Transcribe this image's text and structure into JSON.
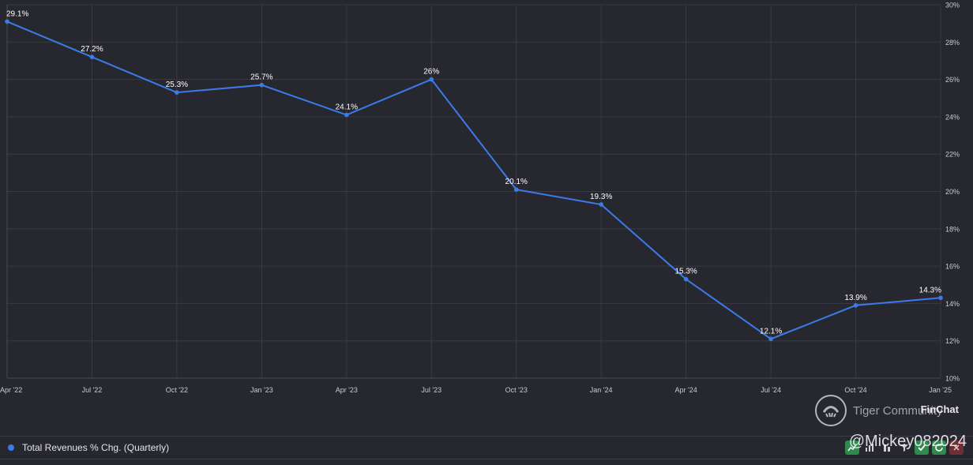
{
  "colors": {
    "background": "#27272f",
    "grid": "#3a3a44",
    "series": "#3b7be8",
    "label": "#ffffff",
    "axis_text": "#c9c9d1"
  },
  "chart_data": {
    "type": "line",
    "x": [
      "Apr '22",
      "Jul '22",
      "Oct '22",
      "Jan '23",
      "Apr '23",
      "Jul '23",
      "Oct '23",
      "Jan '24",
      "Apr '24",
      "Jul '24",
      "Oct '24",
      "Jan '25"
    ],
    "series": [
      {
        "name": "Total Revenues % Chg. (Quarterly)",
        "values": [
          29.1,
          27.2,
          25.3,
          25.7,
          24.1,
          26,
          20.1,
          19.3,
          15.3,
          12.1,
          13.9,
          14.3
        ],
        "labels": [
          "29.1%",
          "27.2%",
          "25.3%",
          "25.7%",
          "24.1%",
          "26%",
          "20.1%",
          "19.3%",
          "15.3%",
          "12.1%",
          "13.9%",
          "14.3%"
        ]
      }
    ],
    "ylim": [
      10,
      30
    ],
    "y_ticks": [
      10,
      12,
      14,
      16,
      18,
      20,
      22,
      24,
      26,
      28,
      30
    ],
    "y_tick_labels": [
      "10%",
      "12%",
      "14%",
      "16%",
      "18%",
      "20%",
      "22%",
      "24%",
      "26%",
      "28%",
      "30%"
    ],
    "y_axis_side": "right",
    "grid": true,
    "legend": "bottom-left"
  },
  "legend": {
    "label": "Total Revenues % Chg. (Quarterly)"
  },
  "watermark": {
    "text": "Tiger Community",
    "brand": "FinChat",
    "handle": "@Mickey082024"
  },
  "toolbar": {
    "icons": [
      "line-chart-icon",
      "bar-chart-icon",
      "stacked-bar-icon",
      "filter-icon",
      "check-icon",
      "refresh-icon",
      "close-icon"
    ]
  }
}
